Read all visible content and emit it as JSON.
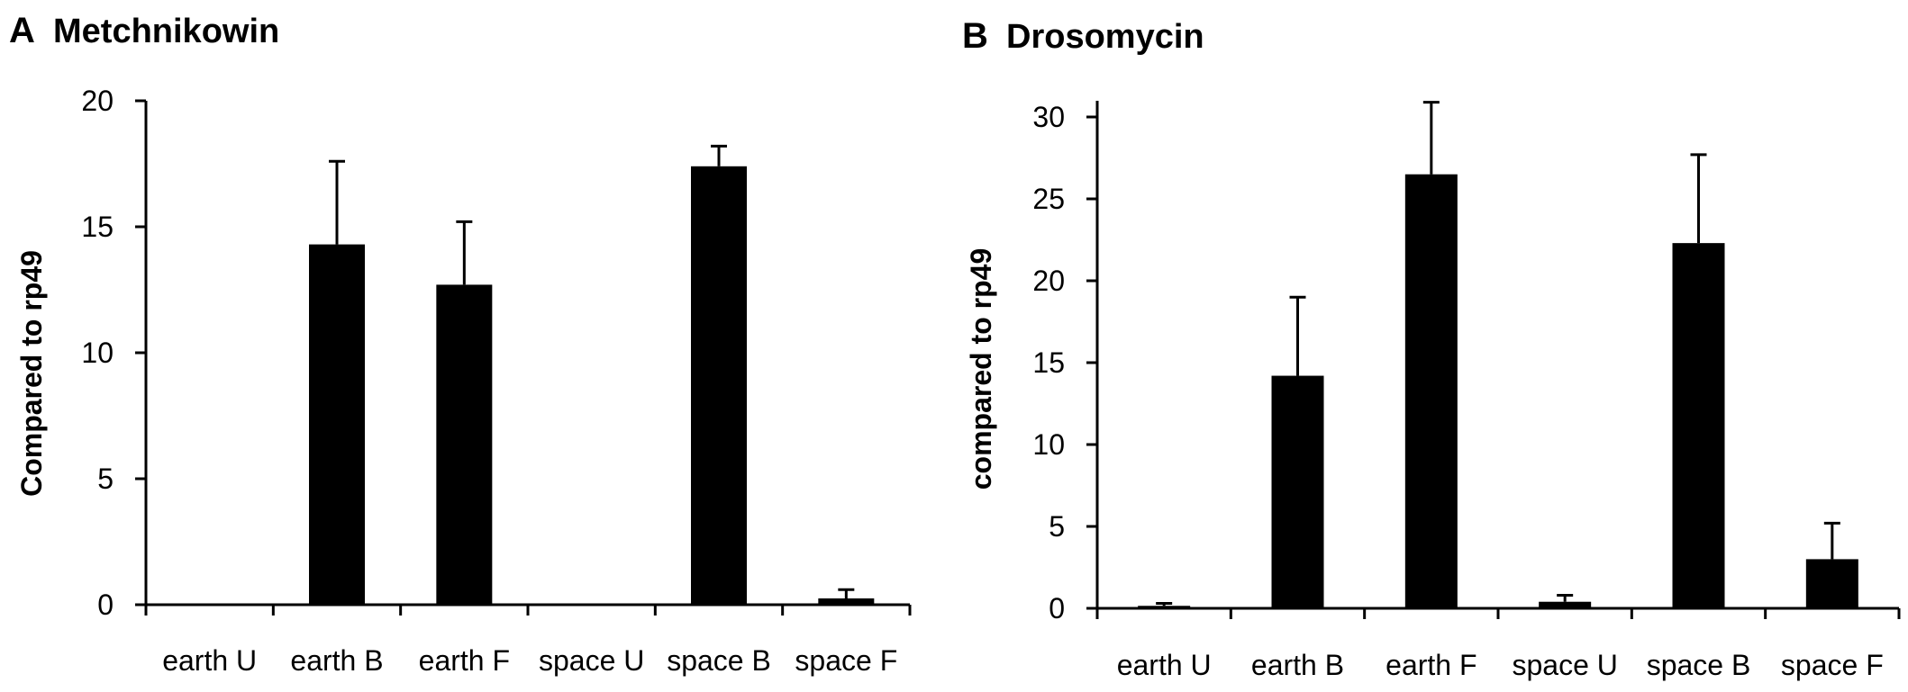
{
  "chart_data": [
    {
      "type": "bar",
      "panel_label": "A",
      "title": "Metchnikowin",
      "ylabel": "Compared to rp49",
      "xlabel": "",
      "categories": [
        "earth U",
        "earth B",
        "earth F",
        "space U",
        "space B",
        "space F"
      ],
      "values": [
        0.02,
        14.3,
        12.7,
        0.05,
        17.4,
        0.25
      ],
      "error_plus": [
        0.0,
        3.3,
        2.5,
        0.0,
        0.8,
        0.35
      ],
      "ylim": [
        0,
        20
      ],
      "yticks": [
        0,
        5,
        10,
        15,
        20
      ],
      "grid": false,
      "color": "#000000"
    },
    {
      "type": "bar",
      "panel_label": "B",
      "title": "Drosomycin",
      "ylabel": "compared to rp49",
      "xlabel": "",
      "categories": [
        "earth U",
        "earth B",
        "earth F",
        "space U",
        "space B",
        "space F"
      ],
      "values": [
        0.15,
        14.2,
        26.5,
        0.4,
        22.3,
        3.0
      ],
      "error_plus": [
        0.15,
        4.8,
        4.4,
        0.4,
        5.4,
        2.2
      ],
      "ylim": [
        0,
        31
      ],
      "yticks": [
        0,
        5,
        10,
        15,
        20,
        25,
        30
      ],
      "grid": false,
      "color": "#000000"
    }
  ]
}
